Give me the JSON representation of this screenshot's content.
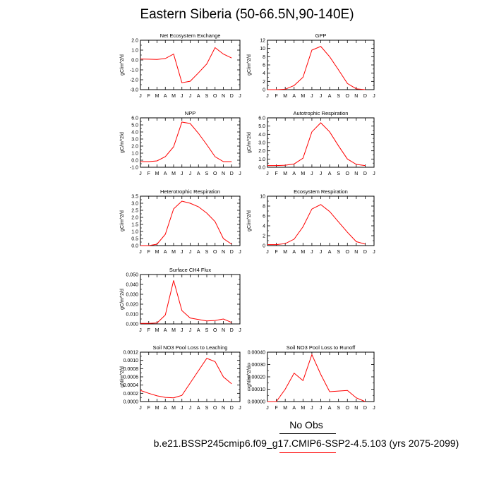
{
  "title": "Eastern Siberia (50-66.5N,90-140E)",
  "footer": {
    "obs_label": "No Obs",
    "case_label": "b.e21.BSSP245cmip6.f09_g17.CMIP6-SSP2-4.5.103 (yrs 2075-2099)",
    "obs_line_color": "#000000",
    "case_line_color": "#ff0000"
  },
  "months": [
    "J",
    "F",
    "M",
    "A",
    "M",
    "J",
    "J",
    "A",
    "S",
    "O",
    "N",
    "D",
    "J"
  ],
  "line_color": "#ff0000",
  "chart_data": [
    {
      "type": "line",
      "title": "Net Ecosystem Exchange",
      "ylabel": "gC/m^2/d",
      "ylim": [
        -3.0,
        2.0
      ],
      "yticks": [
        "-3.0",
        "-2.0",
        "-1.0",
        "0.0",
        "1.0",
        "2.0"
      ],
      "x": [
        "J",
        "F",
        "M",
        "A",
        "M",
        "J",
        "J",
        "A",
        "S",
        "O",
        "N",
        "D"
      ],
      "values": [
        0.1,
        0.08,
        0.05,
        0.15,
        0.6,
        -2.3,
        -2.15,
        -1.3,
        -0.4,
        1.25,
        0.6,
        0.2
      ]
    },
    {
      "type": "line",
      "title": "GPP",
      "ylabel": "gC/m^2/d",
      "ylim": [
        0,
        12
      ],
      "yticks": [
        "0",
        "2",
        "4",
        "6",
        "8",
        "10",
        "12"
      ],
      "x": [
        "J",
        "F",
        "M",
        "A",
        "M",
        "J",
        "J",
        "A",
        "S",
        "O",
        "N",
        "D"
      ],
      "values": [
        0.0,
        0.0,
        0.1,
        1.0,
        3.0,
        9.6,
        10.5,
        8.0,
        4.8,
        1.5,
        0.2,
        0.0
      ]
    },
    {
      "type": "line",
      "title": "NPP",
      "ylabel": "gC/m^2/d",
      "ylim": [
        -1.0,
        6.0
      ],
      "yticks": [
        "-1.0",
        "0.0",
        "1.0",
        "2.0",
        "3.0",
        "4.0",
        "5.0",
        "6.0"
      ],
      "x": [
        "J",
        "F",
        "M",
        "A",
        "M",
        "J",
        "J",
        "A",
        "S",
        "O",
        "N",
        "D"
      ],
      "values": [
        -0.2,
        -0.2,
        -0.1,
        0.5,
        1.9,
        5.4,
        5.2,
        3.8,
        2.2,
        0.5,
        -0.2,
        -0.2
      ]
    },
    {
      "type": "line",
      "title": "Autotrophic Respiration",
      "ylabel": "gC/m^2/d",
      "ylim": [
        0.0,
        6.0
      ],
      "yticks": [
        "0.0",
        "1.0",
        "2.0",
        "3.0",
        "4.0",
        "5.0",
        "6.0"
      ],
      "x": [
        "J",
        "F",
        "M",
        "A",
        "M",
        "J",
        "J",
        "A",
        "S",
        "O",
        "N",
        "D"
      ],
      "values": [
        0.2,
        0.2,
        0.25,
        0.4,
        1.1,
        4.3,
        5.4,
        4.3,
        2.6,
        1.0,
        0.35,
        0.2
      ]
    },
    {
      "type": "line",
      "title": "Heterotrophic Respiration",
      "ylabel": "gC/m^2/d",
      "ylim": [
        0.0,
        3.5
      ],
      "yticks": [
        "0.0",
        "0.5",
        "1.0",
        "1.5",
        "2.0",
        "2.5",
        "3.0",
        "3.5"
      ],
      "x": [
        "J",
        "F",
        "M",
        "A",
        "M",
        "J",
        "J",
        "A",
        "S",
        "O",
        "N",
        "D"
      ],
      "values": [
        0.0,
        0.0,
        0.1,
        0.8,
        2.6,
        3.15,
        3.0,
        2.75,
        2.3,
        1.7,
        0.5,
        0.1
      ]
    },
    {
      "type": "line",
      "title": "Ecosystem Respiration",
      "ylabel": "gC/m^2/d",
      "ylim": [
        0,
        10
      ],
      "yticks": [
        "0",
        "2",
        "4",
        "6",
        "8",
        "10"
      ],
      "x": [
        "J",
        "F",
        "M",
        "A",
        "M",
        "J",
        "J",
        "A",
        "S",
        "O",
        "N",
        "D"
      ],
      "values": [
        0.2,
        0.2,
        0.4,
        1.3,
        3.8,
        7.4,
        8.3,
        6.9,
        4.8,
        2.7,
        0.8,
        0.3
      ]
    },
    {
      "type": "line",
      "title": "Surface CH4 Flux",
      "ylabel": "gC/m^2/d",
      "ylim": [
        0.0,
        0.05
      ],
      "yticks": [
        "0.000",
        "0.010",
        "0.020",
        "0.030",
        "0.040",
        "0.050"
      ],
      "x": [
        "J",
        "F",
        "M",
        "A",
        "M",
        "J",
        "J",
        "A",
        "S",
        "O",
        "N",
        "D"
      ],
      "values": [
        0.0005,
        0.0005,
        0.001,
        0.009,
        0.044,
        0.0135,
        0.006,
        0.0045,
        0.003,
        0.0035,
        0.005,
        0.0015
      ]
    },
    {
      "type": "line",
      "title": "Soil NO3 Pool Loss to Leaching",
      "ylabel": "gN/m^2/d",
      "ylim": [
        0.0,
        0.0012
      ],
      "yticks": [
        "0.0000",
        "0.0002",
        "0.0004",
        "0.0006",
        "0.0008",
        "0.0010",
        "0.0012"
      ],
      "x": [
        "J",
        "F",
        "M",
        "A",
        "M",
        "J",
        "J",
        "A",
        "S",
        "O",
        "N",
        "D"
      ],
      "values": [
        0.00027,
        0.0002,
        0.00014,
        0.0001,
        9e-05,
        0.00015,
        0.00045,
        0.00075,
        0.00105,
        0.00097,
        0.0006,
        0.00043
      ]
    },
    {
      "type": "line",
      "title": "Soil NO3 Pool Loss to Runoff",
      "ylabel": "gN/m^2/d",
      "ylim": [
        0.0,
        0.0004
      ],
      "yticks": [
        "0.00000",
        "0.00010",
        "0.00020",
        "0.00030",
        "0.00040"
      ],
      "x": [
        "J",
        "F",
        "M",
        "A",
        "M",
        "J",
        "J",
        "A",
        "S",
        "O",
        "N",
        "D"
      ],
      "values": [
        0.0,
        0.0,
        0.0001,
        0.00023,
        0.00017,
        0.00038,
        0.00022,
        8e-05,
        8.5e-05,
        9e-05,
        3e-05,
        0.0
      ]
    }
  ]
}
